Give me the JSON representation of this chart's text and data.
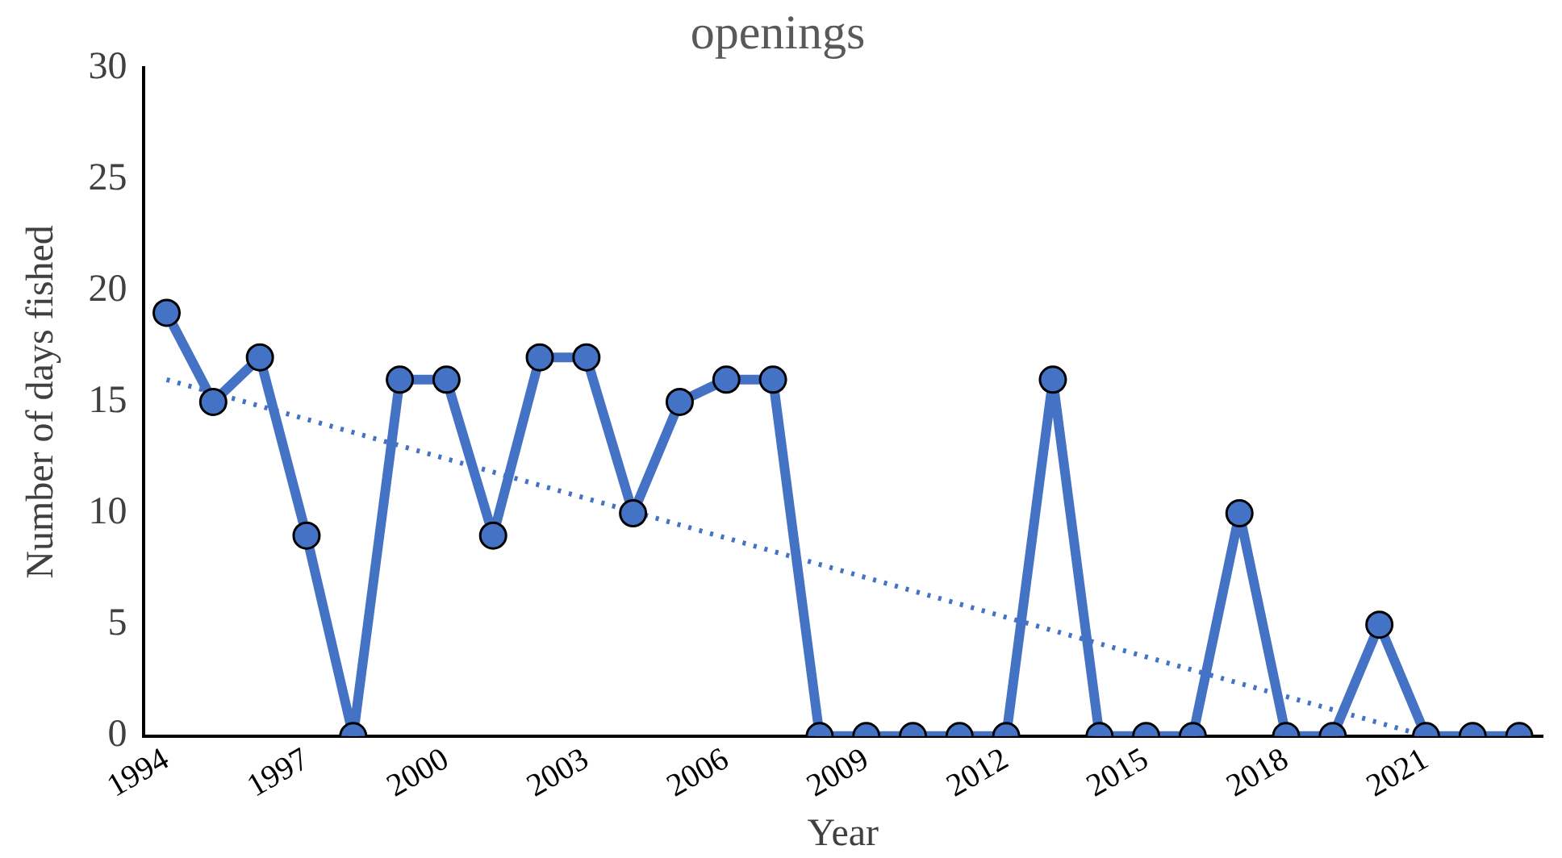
{
  "chart_data": {
    "type": "line",
    "title": "openings",
    "xlabel": "Year",
    "ylabel": "Number of days fished",
    "x": [
      1994,
      1995,
      1996,
      1997,
      1998,
      1999,
      2000,
      2001,
      2002,
      2003,
      2004,
      2005,
      2006,
      2007,
      2008,
      2009,
      2010,
      2011,
      2012,
      2013,
      2014,
      2015,
      2016,
      2017,
      2018,
      2019,
      2020,
      2021,
      2022,
      2023
    ],
    "series": [
      {
        "color": "#4472c4",
        "marker": "circle",
        "line_style": "solid",
        "values": [
          19,
          15,
          17,
          9,
          0,
          16,
          16,
          9,
          17,
          17,
          10,
          15,
          16,
          16,
          0,
          0,
          0,
          0,
          0,
          16,
          0,
          0,
          0,
          10,
          0,
          0,
          5,
          0,
          0,
          0
        ]
      },
      {
        "type": "line",
        "color": "#4472c4",
        "marker": "none",
        "line_style": "dotted",
        "x": [
          1994,
          2021
        ],
        "values": [
          16,
          0
        ]
      }
    ],
    "xlim": [
      1993.5,
      2023.5
    ],
    "xticks": [
      1994,
      1997,
      2000,
      2003,
      2006,
      2009,
      2012,
      2015,
      2018,
      2021
    ],
    "ylim": [
      0,
      30
    ],
    "yticks": [
      0,
      5,
      10,
      15,
      20,
      25,
      30
    ],
    "grid": false,
    "legend": false
  }
}
